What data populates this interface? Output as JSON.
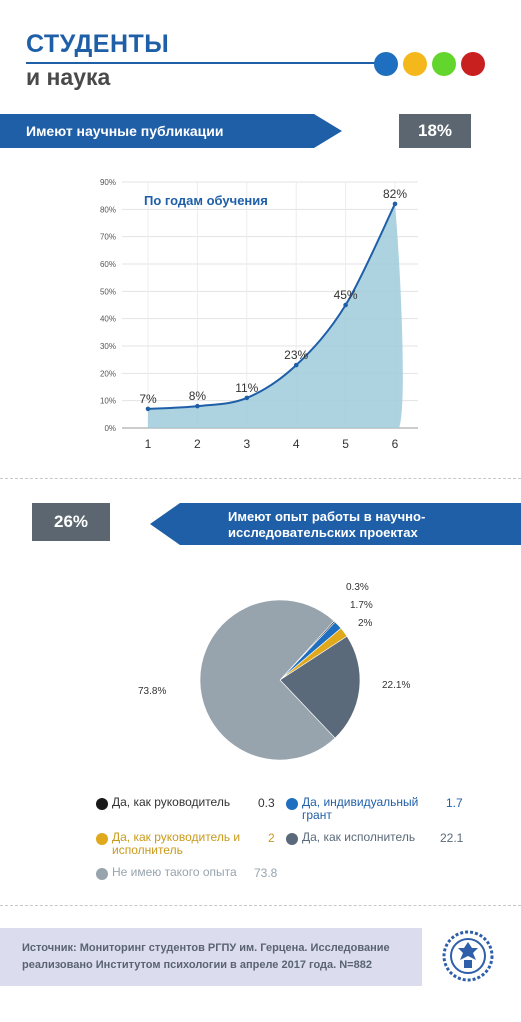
{
  "header": {
    "title_line1": "СТУДЕНТЫ",
    "title_line2": "и наука",
    "dot_colors": [
      "#1f6fc0",
      "#f5b81c",
      "#62d62d",
      "#c8201f"
    ]
  },
  "section1": {
    "banner_label": "Имеют научные публикации",
    "percent": "18%"
  },
  "section2": {
    "banner_label_line1": "Имеют опыт работы в научно-",
    "banner_label_line2": "исследовательских проектах",
    "percent": "26%"
  },
  "chart_data": [
    {
      "type": "area",
      "title": "По годам обучения",
      "x": [
        1,
        2,
        3,
        4,
        5,
        6
      ],
      "values": [
        7,
        8,
        11,
        23,
        45,
        82
      ],
      "data_labels": [
        "7%",
        "8%",
        "11%",
        "23%",
        "45%",
        "82%"
      ],
      "ylim": [
        0,
        90
      ],
      "y_ticks": [
        "0%",
        "10%",
        "20%",
        "30%",
        "40%",
        "50%",
        "60%",
        "70%",
        "80%",
        "90%"
      ],
      "x_ticks": [
        "1",
        "2",
        "3",
        "4",
        "5",
        "6"
      ],
      "grid": true,
      "line_color": "#1f5fa8",
      "area_color": "#9fcbdc"
    },
    {
      "type": "pie",
      "slices": [
        {
          "name": "Да, как руководитель",
          "value": 0.3,
          "label": "0.3%",
          "legend_value": "0.3",
          "color": "#1a1a1a"
        },
        {
          "name": "Да, индивидуальный грант",
          "value": 1.7,
          "label": "1.7%",
          "legend_value": "1.7",
          "color": "#1f6fc0"
        },
        {
          "name": "Да, как руководитель и исполнитель",
          "value": 2,
          "label": "2%",
          "legend_value": "2",
          "color": "#e0a91b"
        },
        {
          "name": "Да, как исполнитель",
          "value": 22.1,
          "label": "22.1%",
          "legend_value": "22.1",
          "color": "#5b6a7a"
        },
        {
          "name": "Не имею такого опыта",
          "value": 73.8,
          "label": "73.8%",
          "legend_value": "73.8",
          "color": "#97a4ad"
        }
      ],
      "legend": [
        {
          "line1": "Да, как руководитель",
          "line2": "",
          "value": "0.3",
          "color": "#1a1a1a",
          "text_color": "#333333"
        },
        {
          "line1": "Да, индивидуальный",
          "line2": "грант",
          "value": "1.7",
          "color": "#1f6fc0",
          "text_color": "#1f5fa8"
        },
        {
          "line1": "Да, как руководитель и",
          "line2": "исполнитель",
          "value": "2",
          "color": "#e0a91b",
          "text_color": "#c99a1a"
        },
        {
          "line1": "Да, как исполнитель",
          "line2": "",
          "value": "22.1",
          "color": "#5b6a7a",
          "text_color": "#5b6a7a"
        },
        {
          "line1": "Не имею такого опыта",
          "line2": "",
          "value": "73.8",
          "color": "#97a4ad",
          "text_color": "#97a4ad"
        }
      ]
    }
  ],
  "footer": {
    "source_line1": "Источник: Мониторинг студентов РГПУ им. Герцена. Исследование",
    "source_line2": "реализовано Институтом психологии в апреле 2017 года. N=882",
    "logo_icon": "university-emblem-icon"
  }
}
